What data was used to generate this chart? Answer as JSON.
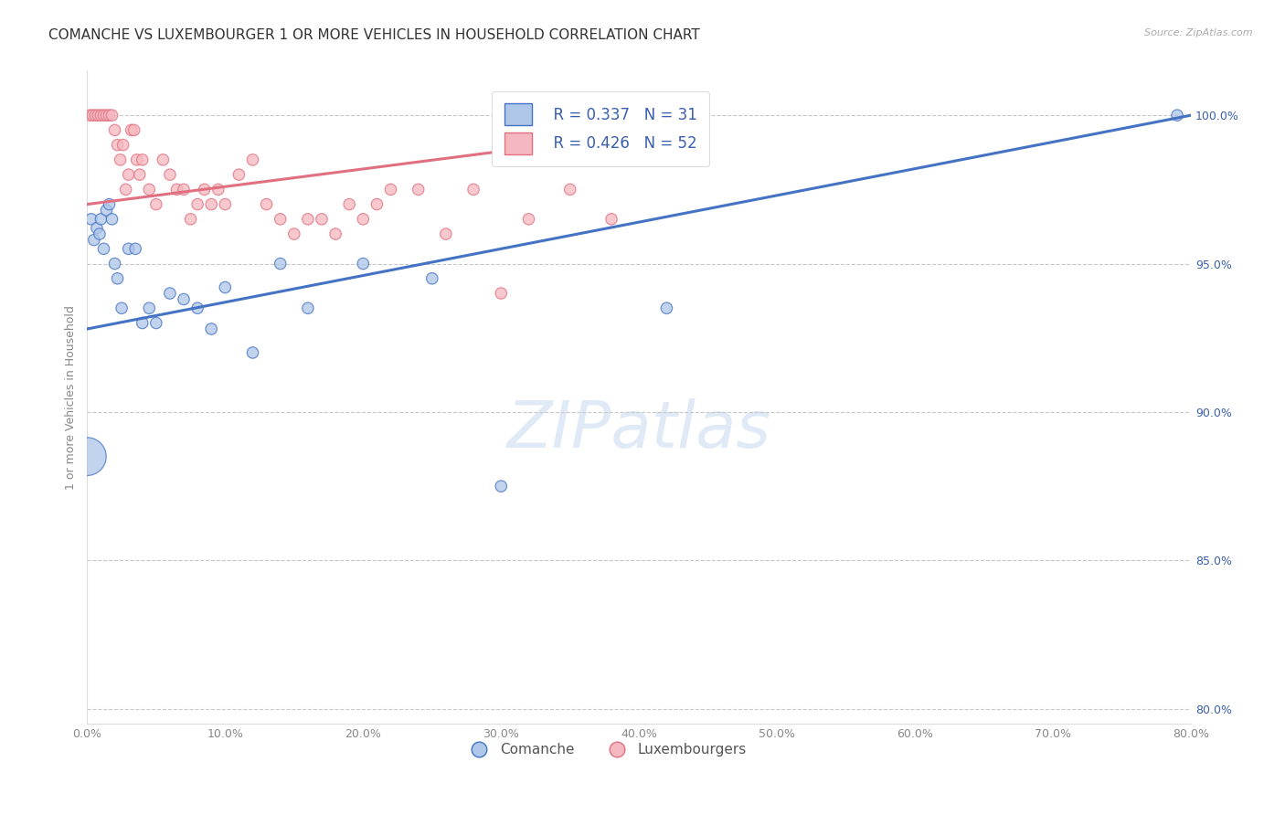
{
  "title": "COMANCHE VS LUXEMBOURGER 1 OR MORE VEHICLES IN HOUSEHOLD CORRELATION CHART",
  "source": "Source: ZipAtlas.com",
  "ylabel": "1 or more Vehicles in Household",
  "xlim": [
    0.0,
    80.0
  ],
  "ylim": [
    79.5,
    101.5
  ],
  "y_ticks": [
    80.0,
    85.0,
    90.0,
    95.0,
    100.0
  ],
  "x_ticks": [
    0.0,
    10.0,
    20.0,
    30.0,
    40.0,
    50.0,
    60.0,
    70.0,
    80.0
  ],
  "legend_r_blue": "R = 0.337",
  "legend_n_blue": "N = 31",
  "legend_r_pink": "R = 0.426",
  "legend_n_pink": "N = 52",
  "blue_color": "#aec6e8",
  "pink_color": "#f5b8c0",
  "blue_line_color": "#4472c4",
  "pink_line_color": "#e07080",
  "legend_text_color": "#3a5fad",
  "comanche_x": [
    0.0,
    0.3,
    0.5,
    0.7,
    0.9,
    1.0,
    1.2,
    1.4,
    1.6,
    1.8,
    2.0,
    2.2,
    2.5,
    3.0,
    3.5,
    4.0,
    4.5,
    5.0,
    6.0,
    7.0,
    8.0,
    9.0,
    10.0,
    12.0,
    14.0,
    16.0,
    20.0,
    25.0,
    30.0,
    42.0,
    79.0
  ],
  "comanche_y": [
    88.5,
    96.5,
    95.8,
    96.2,
    96.0,
    96.5,
    95.5,
    96.8,
    97.0,
    96.5,
    95.0,
    94.5,
    93.5,
    95.5,
    95.5,
    93.0,
    93.5,
    93.0,
    94.0,
    93.8,
    93.5,
    92.8,
    94.2,
    92.0,
    95.0,
    93.5,
    95.0,
    94.5,
    87.5,
    93.5,
    100.0
  ],
  "comanche_sizes": [
    900,
    80,
    80,
    80,
    80,
    80,
    80,
    80,
    80,
    80,
    80,
    80,
    80,
    80,
    80,
    80,
    80,
    80,
    80,
    80,
    80,
    80,
    80,
    80,
    80,
    80,
    80,
    80,
    80,
    80,
    80
  ],
  "luxembourger_x": [
    0.2,
    0.4,
    0.6,
    0.8,
    1.0,
    1.2,
    1.4,
    1.6,
    1.8,
    2.0,
    2.2,
    2.4,
    2.6,
    2.8,
    3.0,
    3.2,
    3.4,
    3.6,
    3.8,
    4.0,
    4.5,
    5.0,
    5.5,
    6.0,
    6.5,
    7.0,
    7.5,
    8.0,
    8.5,
    9.0,
    9.5,
    10.0,
    11.0,
    12.0,
    13.0,
    14.0,
    15.0,
    16.0,
    17.0,
    18.0,
    19.0,
    20.0,
    21.0,
    22.0,
    24.0,
    26.0,
    28.0,
    30.0,
    32.0,
    35.0,
    38.0,
    42.0
  ],
  "luxembourger_y": [
    100.0,
    100.0,
    100.0,
    100.0,
    100.0,
    100.0,
    100.0,
    100.0,
    100.0,
    99.5,
    99.0,
    98.5,
    99.0,
    97.5,
    98.0,
    99.5,
    99.5,
    98.5,
    98.0,
    98.5,
    97.5,
    97.0,
    98.5,
    98.0,
    97.5,
    97.5,
    96.5,
    97.0,
    97.5,
    97.0,
    97.5,
    97.0,
    98.0,
    98.5,
    97.0,
    96.5,
    96.0,
    96.5,
    96.5,
    96.0,
    97.0,
    96.5,
    97.0,
    97.5,
    97.5,
    96.0,
    97.5,
    94.0,
    96.5,
    97.5,
    96.5,
    100.0
  ],
  "luxembourger_sizes": [
    80,
    80,
    80,
    80,
    80,
    80,
    80,
    80,
    80,
    80,
    80,
    80,
    80,
    80,
    80,
    80,
    80,
    80,
    80,
    80,
    80,
    80,
    80,
    80,
    80,
    80,
    80,
    80,
    80,
    80,
    80,
    80,
    80,
    80,
    80,
    80,
    80,
    80,
    80,
    80,
    80,
    80,
    80,
    80,
    80,
    80,
    80,
    80,
    80,
    80,
    80,
    80
  ],
  "blue_line_x": [
    0.0,
    80.0
  ],
  "blue_line_y": [
    92.8,
    100.0
  ],
  "pink_line_x": [
    0.0,
    42.0
  ],
  "pink_line_y": [
    97.0,
    99.5
  ],
  "background_color": "#ffffff",
  "grid_color": "#c8c8c8",
  "title_fontsize": 11,
  "axis_label_fontsize": 9,
  "tick_fontsize": 9,
  "legend_fontsize": 12,
  "watermark": "ZIPatlas"
}
